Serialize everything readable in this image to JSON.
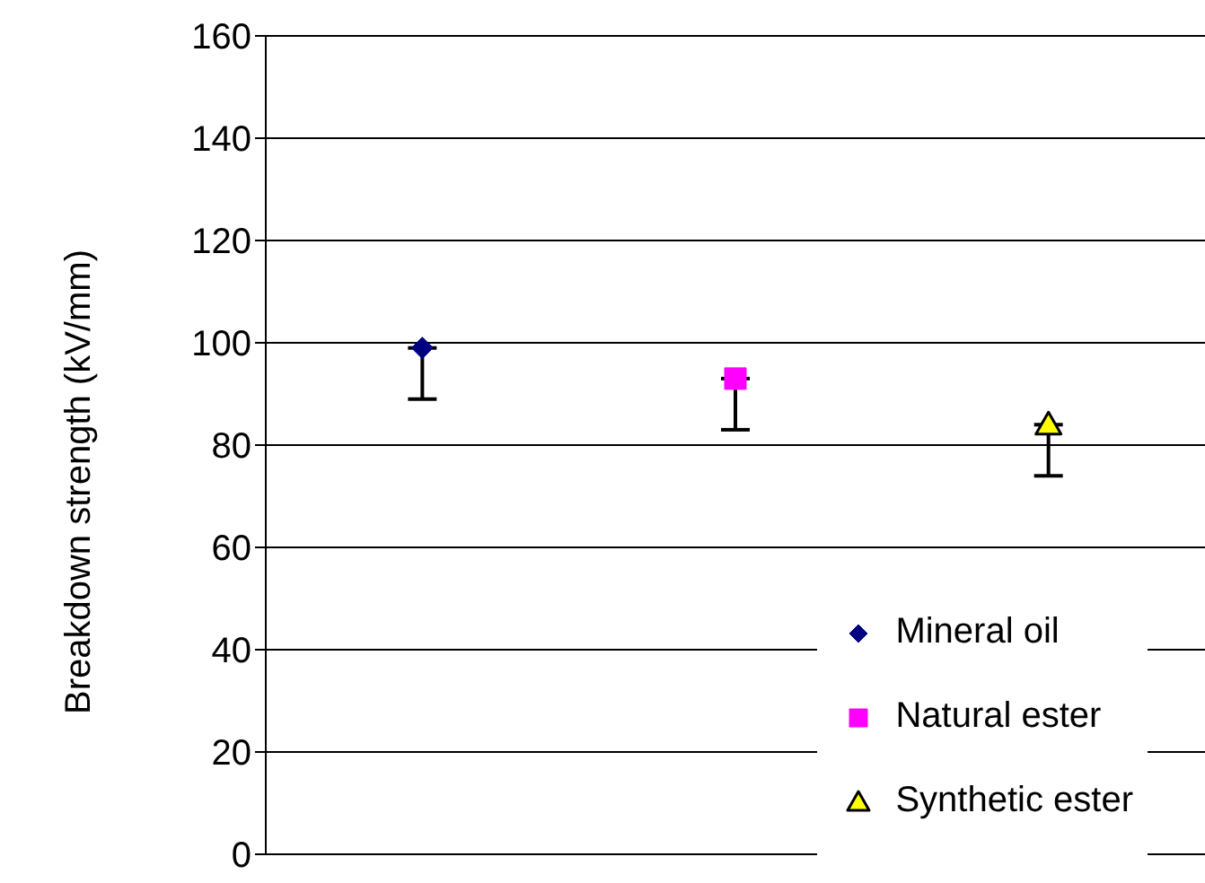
{
  "chart_data": {
    "type": "scatter",
    "ylabel": "Breakdown strength (kV/mm)",
    "categories": [
      null,
      null,
      null
    ],
    "series": [
      {
        "name": "Mineral oil",
        "color": "#000080",
        "marker": "diamond",
        "values": [
          99,
          null,
          null
        ],
        "errors": [
          [
            89,
            99
          ],
          null,
          null
        ]
      },
      {
        "name": "Natural ester",
        "color": "#ff00ff",
        "marker": "square",
        "values": [
          null,
          93,
          null
        ],
        "errors": [
          null,
          [
            83,
            93
          ],
          null
        ]
      },
      {
        "name": "Synthetic ester",
        "color": "#ffff00",
        "marker": "triangle",
        "values": [
          null,
          null,
          84
        ],
        "errors": [
          null,
          null,
          [
            74,
            84
          ]
        ]
      }
    ],
    "ylim": [
      0,
      160
    ],
    "yticks": [
      0,
      20,
      40,
      60,
      80,
      100,
      120,
      140,
      160
    ],
    "grid": "y",
    "legend": "bottom right",
    "tick_labels": "y"
  }
}
